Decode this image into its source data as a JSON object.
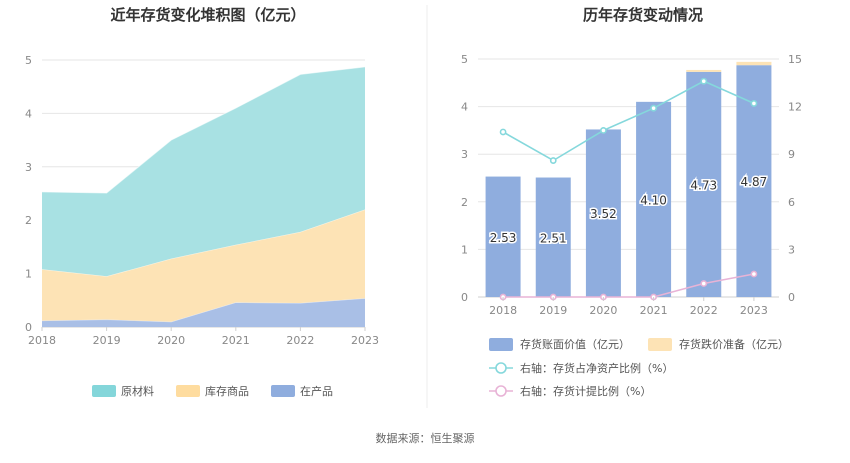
{
  "source": "数据来源：恒生聚源",
  "chart_data": [
    {
      "type": "area",
      "stacked": true,
      "title": "近年存货变化堆积图（亿元）",
      "categories": [
        "2018",
        "2019",
        "2020",
        "2021",
        "2022",
        "2023"
      ],
      "ylim": [
        0,
        5
      ],
      "yticks": [
        "0",
        "1",
        "2",
        "3",
        "4",
        "5"
      ],
      "grid": true,
      "legend_position": "bottom",
      "series": [
        {
          "name": "在产品",
          "color": "#a9bfe6",
          "values": [
            0.12,
            0.14,
            0.1,
            0.46,
            0.45,
            0.54
          ]
        },
        {
          "name": "库存商品",
          "color": "#fde3b5",
          "values": [
            0.96,
            0.81,
            1.18,
            1.08,
            1.33,
            1.66
          ]
        },
        {
          "name": "原材料",
          "color": "#a8e1e3",
          "values": [
            1.45,
            1.56,
            2.22,
            2.56,
            2.95,
            2.67
          ]
        }
      ],
      "legend": [
        {
          "name": "原材料",
          "color": "#84d6da"
        },
        {
          "name": "库存商品",
          "color": "#fedc9f"
        },
        {
          "name": "在产品",
          "color": "#8fadde"
        }
      ]
    },
    {
      "type": "bar",
      "title": "历年存货变动情况",
      "categories": [
        "2018",
        "2019",
        "2020",
        "2021",
        "2022",
        "2023"
      ],
      "ylim": [
        0,
        5
      ],
      "yticks": [
        "0",
        "1",
        "2",
        "3",
        "4",
        "5"
      ],
      "y2lim": [
        0,
        15
      ],
      "y2ticks": [
        "0",
        "3",
        "6",
        "9",
        "12",
        "15"
      ],
      "grid": true,
      "legend_position": "bottom",
      "bars": [
        {
          "name": "存货账面价值（亿元）",
          "color": "#8fadde",
          "values": [
            2.53,
            2.51,
            3.52,
            4.1,
            4.73,
            4.87
          ],
          "labels": [
            "2.53",
            "2.51",
            "3.52",
            "4.10",
            "4.73",
            "4.87"
          ]
        },
        {
          "name": "存货跌价准备（亿元）",
          "color": "#fde3b5",
          "values": [
            0,
            0,
            0,
            0,
            0.04,
            0.07
          ]
        }
      ],
      "lines": [
        {
          "name": "右轴：存货占净资产比例（%）",
          "color": "#85d8dc",
          "axis": "right",
          "values": [
            10.4,
            8.6,
            10.5,
            11.9,
            13.6,
            12.2
          ]
        },
        {
          "name": "右轴：存货计提比例（%）",
          "color": "#e8b3d6",
          "axis": "right",
          "values": [
            0,
            0,
            0,
            0,
            0.85,
            1.45
          ]
        }
      ]
    }
  ]
}
